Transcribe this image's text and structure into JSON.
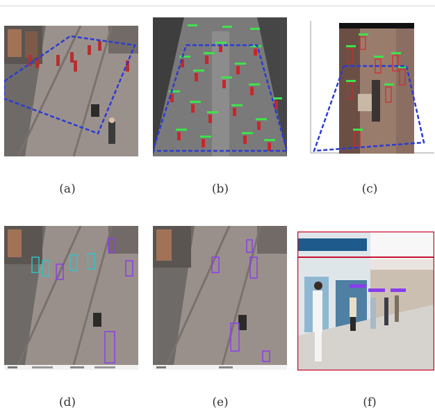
{
  "captions": {
    "a": "(a)",
    "b": "(b)",
    "c": "(c)",
    "d": "(d)",
    "e": "(e)",
    "f": "(f)"
  },
  "colors": {
    "roi_line": "#2a3bd6",
    "person_box": "#d8262a",
    "label_text": "#3fe24a",
    "track_purple": "#8a3cf0",
    "track_cyan": "#2ec4c4",
    "frame_red": "#c8102e"
  }
}
